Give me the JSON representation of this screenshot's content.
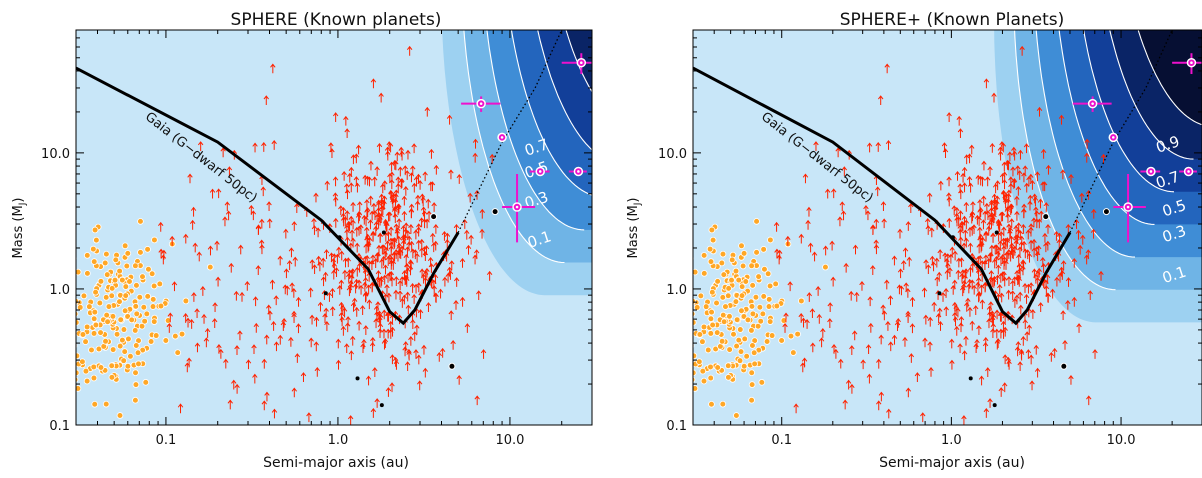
{
  "chart_data": [
    {
      "type": "scatter",
      "title": "SPHERE (Known planets)",
      "xlabel": "Semi-major axis (au)",
      "ylabel": "Mass (M",
      "ylabel_sub": "J",
      "ylabel_close": ")",
      "xscale": "log",
      "yscale": "log",
      "xlim": [
        0.03,
        30
      ],
      "ylim": [
        0.1,
        80
      ],
      "xticks": [
        {
          "v": 0.1,
          "label": "0.1"
        },
        {
          "v": 1,
          "label": "1.0"
        },
        {
          "v": 10,
          "label": "10.0"
        }
      ],
      "yticks": [
        {
          "v": 0.1,
          "label": "0.1"
        },
        {
          "v": 1,
          "label": "1.0"
        },
        {
          "v": 10,
          "label": "10.0"
        }
      ],
      "gaia_label": "Gaia (G−dwarf 50pc)",
      "contour_labels": [
        "0.7",
        "0.5",
        "0.3",
        "0.1"
      ],
      "colors": {
        "background": "#c8e6f8",
        "contour": [
          "#9dd1f1",
          "#6fb4e6",
          "#3f8dd6",
          "#2365bd",
          "#123f99",
          "#0a2466",
          "#060f33"
        ],
        "rv": "#ff2200",
        "transit": "#ffa726",
        "imaged": "#ee11cc",
        "gaia_curve": "#000000",
        "contour_line": "#ffffff"
      },
      "contour_shift": [
        0,
        0
      ]
    },
    {
      "type": "scatter",
      "title": "SPHERE+ (Known Planets)",
      "xlabel": "Semi-major axis (au)",
      "ylabel": "Mass (M",
      "ylabel_sub": "J",
      "ylabel_close": ")",
      "xscale": "log",
      "yscale": "log",
      "xlim": [
        0.03,
        30
      ],
      "ylim": [
        0.1,
        80
      ],
      "xticks": [
        {
          "v": 0.1,
          "label": "0.1"
        },
        {
          "v": 1,
          "label": "1.0"
        },
        {
          "v": 10,
          "label": "10.0"
        }
      ],
      "yticks": [
        {
          "v": 0.1,
          "label": "0.1"
        },
        {
          "v": 1,
          "label": "1.0"
        },
        {
          "v": 10,
          "label": "10.0"
        }
      ],
      "gaia_label": "Gaia (G−dwarf 50pc)",
      "contour_labels": [
        "0.9",
        "0.7",
        "0.5",
        "0.3",
        "0.1"
      ],
      "colors": {
        "background": "#c8e6f8",
        "contour": [
          "#9dd1f1",
          "#6fb4e6",
          "#3f8dd6",
          "#2365bd",
          "#123f99",
          "#0a2466",
          "#060f33"
        ],
        "rv": "#ff2200",
        "transit": "#ffa726",
        "imaged": "#ee11cc",
        "gaia_curve": "#000000",
        "contour_line": "#ffffff"
      },
      "contour_shift": [
        -0.35,
        -0.2
      ]
    }
  ],
  "shared": {
    "gaia_curve": [
      [
        0.03,
        42
      ],
      [
        0.2,
        12
      ],
      [
        0.8,
        3.2
      ],
      [
        1.5,
        1.4
      ],
      [
        2.0,
        0.68
      ],
      [
        2.4,
        0.56
      ],
      [
        2.8,
        0.7
      ],
      [
        3.6,
        1.3
      ],
      [
        5.0,
        2.6
      ]
    ],
    "gaia_dotted": [
      [
        5.0,
        2.6
      ],
      [
        9.0,
        12
      ],
      [
        14,
        30
      ],
      [
        20,
        80
      ]
    ],
    "imaged_planets": [
      {
        "a": 26,
        "m": 46,
        "xerr": [
          20,
          33
        ],
        "yerr": [
          38,
          54
        ]
      },
      {
        "a": 6.8,
        "m": 23,
        "xerr": [
          5.2,
          8.8
        ],
        "yerr": [
          20,
          26
        ]
      },
      {
        "a": 9.0,
        "m": 13,
        "xerr": null,
        "yerr": null
      },
      {
        "a": 15,
        "m": 7.3,
        "xerr": [
          13,
          17
        ],
        "yerr": null
      },
      {
        "a": 25,
        "m": 7.3,
        "xerr": [
          22,
          28
        ],
        "yerr": null
      },
      {
        "a": 11,
        "m": 4.0,
        "xerr": [
          9,
          14
        ],
        "yerr": [
          2.2,
          7
        ]
      }
    ],
    "black_points": [
      [
        3.6,
        3.4
      ],
      [
        8.2,
        3.7
      ],
      [
        1.02,
        2.4
      ],
      [
        1.85,
        2.6
      ],
      [
        0.85,
        0.93
      ],
      [
        1.3,
        0.22
      ],
      [
        4.6,
        0.27
      ],
      [
        1.8,
        0.14
      ]
    ]
  }
}
